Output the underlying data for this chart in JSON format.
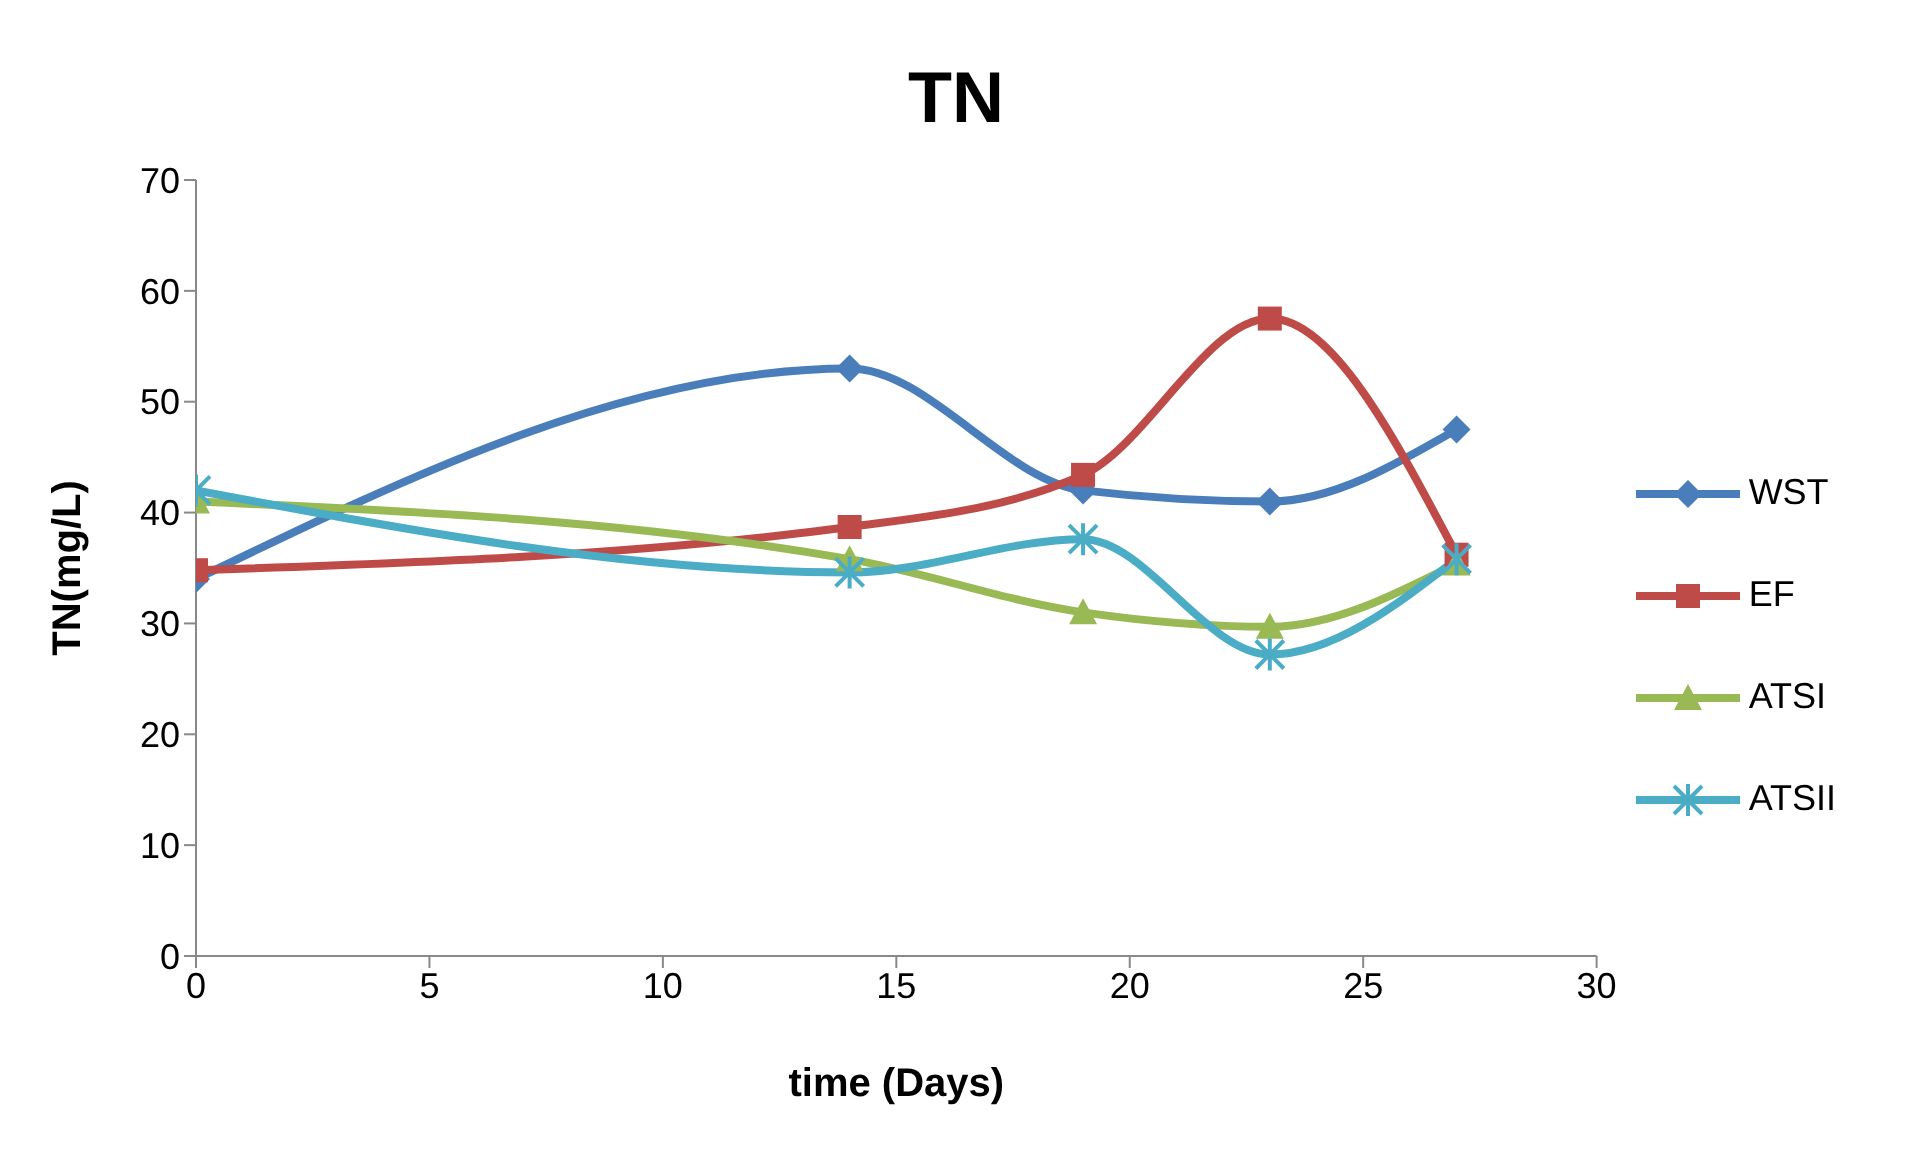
{
  "chart_data": {
    "type": "line",
    "title": "TN",
    "xlabel": "time (Days)",
    "ylabel": "TN(mg/L)",
    "x": [
      0,
      14,
      19,
      23,
      27
    ],
    "series": [
      {
        "name": "WST",
        "color": "#4a7ebb",
        "marker": "diamond",
        "values": [
          34,
          53,
          42,
          41,
          47.5
        ]
      },
      {
        "name": "EF",
        "color": "#be4b48",
        "marker": "square",
        "values": [
          34.8,
          38.7,
          43.4,
          57.5,
          36.2
        ]
      },
      {
        "name": "ATSI",
        "color": "#98b954",
        "marker": "triangle",
        "values": [
          41,
          35.8,
          31,
          29.7,
          35.4
        ]
      },
      {
        "name": "ATSII",
        "color": "#4bacc6",
        "marker": "cross",
        "values": [
          42,
          34.6,
          37.6,
          27.2,
          35.8
        ]
      }
    ],
    "xlim": [
      0,
      30
    ],
    "xticks": [
      0,
      5,
      10,
      15,
      20,
      25,
      30
    ],
    "ylim": [
      0,
      70
    ],
    "yticks": [
      0,
      10,
      20,
      30,
      40,
      50,
      60,
      70
    ],
    "grid": false,
    "legend": "right"
  }
}
